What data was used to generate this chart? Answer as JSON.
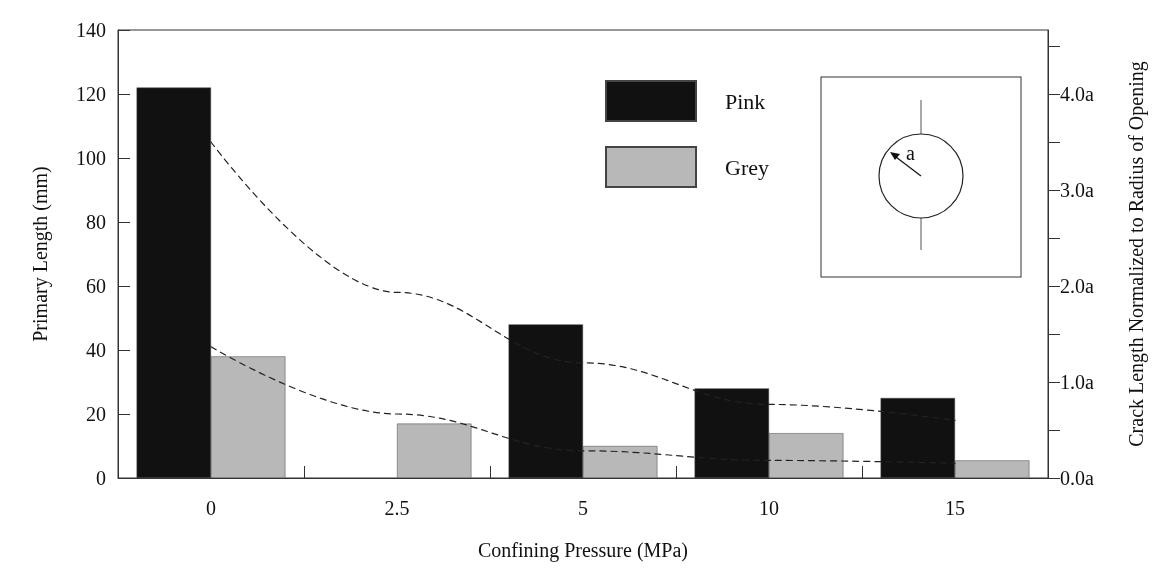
{
  "chart_data": {
    "type": "bar",
    "xlabel": "Confining Pressure (MPa)",
    "ylabel": "Primary Length (mm)",
    "y2label": "Crack Length Normalized to Radius of Opening",
    "categories": [
      "0",
      "2.5",
      "5",
      "10",
      "15"
    ],
    "series": [
      {
        "name": "Pink",
        "color": "#111111",
        "values": [
          122,
          null,
          48,
          28,
          25
        ]
      },
      {
        "name": "Grey",
        "color": "#b8b8b8",
        "values": [
          38,
          17,
          10,
          14,
          5.5
        ]
      },
      {
        "type": "line",
        "color": "#222222",
        "line_style": "dashed",
        "marker": "none",
        "x": [
          "0",
          "2.5",
          "5",
          "10",
          "15"
        ],
        "values": [
          105,
          58,
          36,
          23,
          18
        ]
      },
      {
        "type": "line",
        "color": "#222222",
        "line_style": "dashed",
        "marker": "none",
        "x": [
          "0",
          "2.5",
          "5",
          "10",
          "15"
        ],
        "values": [
          41,
          20,
          8.5,
          5.5,
          4.6
        ]
      }
    ],
    "ylim": [
      0,
      140
    ],
    "yticks": [
      0,
      20,
      40,
      60,
      80,
      100,
      120,
      140
    ],
    "y2lim": [
      0,
      4.667
    ],
    "y2ticks": [
      {
        "value": 0,
        "label": "0.0a"
      },
      {
        "value": 0.5,
        "label": null
      },
      {
        "value": 1,
        "label": "1.0a"
      },
      {
        "value": 1.5,
        "label": null
      },
      {
        "value": 2,
        "label": "2.0a"
      },
      {
        "value": 2.5,
        "label": null
      },
      {
        "value": 3,
        "label": "3.0a"
      },
      {
        "value": 3.5,
        "label": null
      },
      {
        "value": 4,
        "label": "4.0a"
      },
      {
        "value": 4.5,
        "label": null
      }
    ],
    "grid": false,
    "legend": "top right",
    "annotations": [
      "a"
    ]
  }
}
